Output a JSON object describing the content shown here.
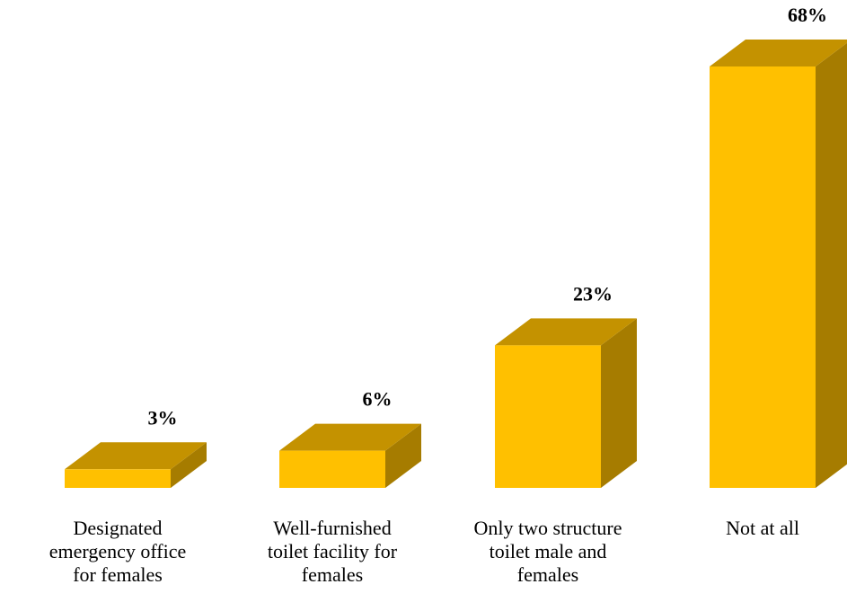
{
  "chart_data": {
    "type": "bar",
    "style": "3d-column",
    "categories": [
      "Designated\nemergency office\nfor females",
      "Well-furnished\ntoilet facility for\nfemales",
      "Only two structure\ntoilet male and\nfemales",
      "Not at all"
    ],
    "values": [
      3,
      6,
      23,
      68
    ],
    "value_labels": [
      "3%",
      "6%",
      "23%",
      "68%"
    ],
    "ylim": [
      0,
      68
    ],
    "grid": false,
    "legend": "none",
    "colors": {
      "front": "#FFC000",
      "top": "#C49200",
      "side": "#A67C00"
    }
  }
}
